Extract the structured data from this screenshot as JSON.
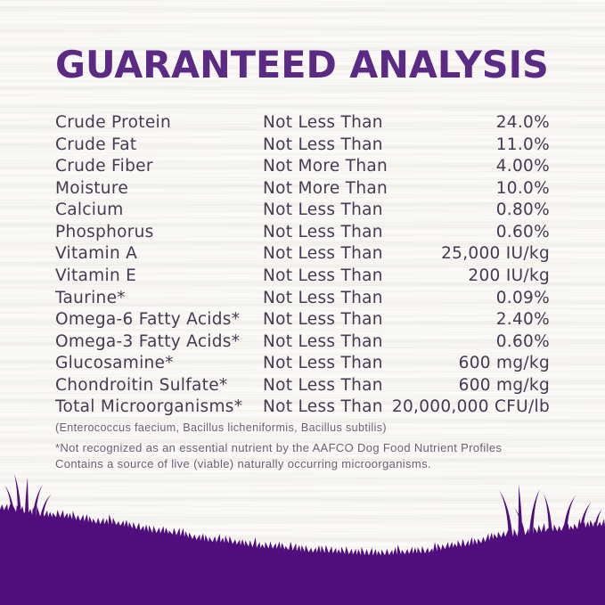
{
  "title": "GUARANTEED ANALYSIS",
  "colors": {
    "title": "#5b2a85",
    "grass": "#4f0e7c",
    "row_text": "#443a52",
    "footnote_text": "#6b6175"
  },
  "table": {
    "rows": [
      {
        "nutrient": "Crude Protein",
        "qualifier": "Not Less Than",
        "value": "24.0%"
      },
      {
        "nutrient": "Crude Fat",
        "qualifier": "Not Less Than",
        "value": "11.0%"
      },
      {
        "nutrient": "Crude Fiber",
        "qualifier": "Not More Than",
        "value": "4.00%"
      },
      {
        "nutrient": "Moisture",
        "qualifier": "Not More Than",
        "value": "10.0%"
      },
      {
        "nutrient": "Calcium",
        "qualifier": "Not Less Than",
        "value": "0.80%"
      },
      {
        "nutrient": "Phosphorus",
        "qualifier": "Not Less Than",
        "value": "0.60%"
      },
      {
        "nutrient": "Vitamin A",
        "qualifier": "Not Less Than",
        "value": "25,000 IU/kg"
      },
      {
        "nutrient": "Vitamin E",
        "qualifier": "Not Less Than",
        "value": "200 IU/kg"
      },
      {
        "nutrient": "Taurine*",
        "qualifier": "Not Less Than",
        "value": "0.09%"
      },
      {
        "nutrient": "Omega-6 Fatty Acids*",
        "qualifier": "Not Less Than",
        "value": "2.40%"
      },
      {
        "nutrient": "Omega-3 Fatty Acids*",
        "qualifier": "Not Less Than",
        "value": "0.60%"
      },
      {
        "nutrient": "Glucosamine*",
        "qualifier": "Not Less Than",
        "value": "600 mg/kg"
      },
      {
        "nutrient": "Chondroitin Sulfate*",
        "qualifier": "Not Less Than",
        "value": "600 mg/kg"
      },
      {
        "nutrient": "Total Microorganisms*",
        "qualifier": "Not Less Than",
        "value": "20,000,000 CFU/lb"
      }
    ]
  },
  "microorganisms_note": "(Enterococcus faecium, Bacillus licheniformis, Bacillus subtilis)",
  "footnotes": [
    "*Not recognized as an essential nutrient by the AAFCO Dog Food Nutrient Profiles",
    "Contains a source of live (viable) naturally occurring microorganisms."
  ]
}
